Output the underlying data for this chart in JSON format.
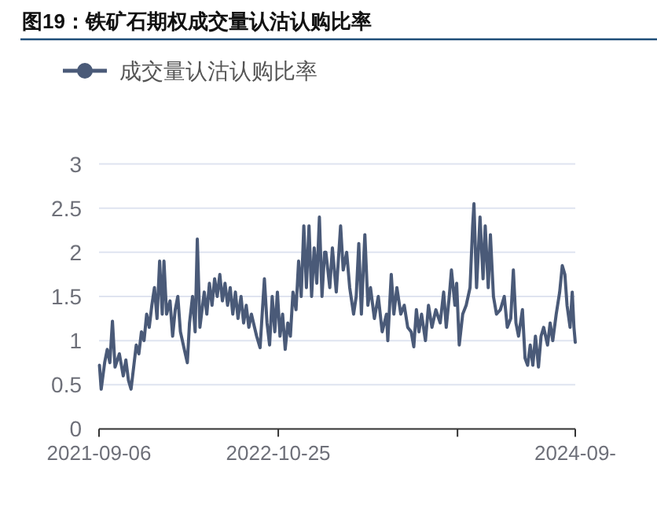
{
  "chart_data": {
    "type": "line",
    "title": "图19：铁矿石期权成交量认沽认购比率",
    "x": [
      "2021-09-07",
      "2021-09-11",
      "2021-09-19",
      "2021-09-25",
      "2021-10-01",
      "2021-10-07",
      "2021-10-13",
      "2021-10-23",
      "2021-11-01",
      "2021-11-07",
      "2021-11-13",
      "2021-11-19",
      "2021-11-25",
      "2021-12-01",
      "2021-12-07",
      "2021-12-13",
      "2021-12-19",
      "2021-12-25",
      "2021-12-31",
      "2022-01-06",
      "2022-01-12",
      "2022-01-18",
      "2022-01-24",
      "2022-01-30",
      "2022-02-03",
      "2022-02-09",
      "2022-02-17",
      "2022-02-23",
      "2022-03-01",
      "2022-03-07",
      "2022-03-13",
      "2022-03-22",
      "2022-03-29",
      "2022-04-03",
      "2022-04-10",
      "2022-04-16",
      "2022-04-21",
      "2022-04-27",
      "2022-05-07",
      "2022-05-13",
      "2022-05-19",
      "2022-05-25",
      "2022-05-31",
      "2022-06-06",
      "2022-06-12",
      "2022-06-18",
      "2022-06-24",
      "2022-06-30",
      "2022-07-06",
      "2022-07-12",
      "2022-07-18",
      "2022-07-24",
      "2022-07-31",
      "2022-08-06",
      "2022-08-12",
      "2022-08-18",
      "2022-08-24",
      "2022-09-05",
      "2022-09-13",
      "2022-09-23",
      "2022-09-29",
      "2022-10-05",
      "2022-10-11",
      "2022-10-17",
      "2022-10-23",
      "2022-10-29",
      "2022-11-04",
      "2022-11-10",
      "2022-11-16",
      "2022-11-22",
      "2022-11-28",
      "2022-12-05",
      "2022-12-11",
      "2022-12-17",
      "2022-12-23",
      "2022-12-29",
      "2023-01-04",
      "2023-01-10",
      "2023-01-16",
      "2023-01-22",
      "2023-01-28",
      "2023-02-03",
      "2023-02-09",
      "2023-02-12",
      "2023-02-21",
      "2023-02-27",
      "2023-03-08",
      "2023-03-18",
      "2023-03-24",
      "2023-04-01",
      "2023-04-08",
      "2023-04-17",
      "2023-04-23",
      "2023-04-29",
      "2023-05-05",
      "2023-05-13",
      "2023-05-20",
      "2023-05-26",
      "2023-06-04",
      "2023-06-13",
      "2023-06-22",
      "2023-07-02",
      "2023-07-05",
      "2023-07-13",
      "2023-07-19",
      "2023-07-26",
      "2023-08-04",
      "2023-08-12",
      "2023-08-20",
      "2023-08-28",
      "2023-09-03",
      "2023-09-09",
      "2023-09-15",
      "2023-09-21",
      "2023-09-30",
      "2023-10-07",
      "2023-10-15",
      "2023-10-24",
      "2023-11-03",
      "2023-11-11",
      "2023-11-17",
      "2023-11-24",
      "2023-11-29",
      "2023-12-07",
      "2023-12-11",
      "2023-12-17",
      "2023-12-25",
      "2024-01-02",
      "2024-01-11",
      "2024-01-17",
      "2024-01-20",
      "2024-01-26",
      "2024-02-03",
      "2024-02-10",
      "2024-02-15",
      "2024-02-22",
      "2024-02-27",
      "2024-03-05",
      "2024-03-12",
      "2024-03-21",
      "2024-03-30",
      "2024-04-06",
      "2024-04-14",
      "2024-04-20",
      "2024-04-26",
      "2024-05-02",
      "2024-05-11",
      "2024-05-17",
      "2024-05-23",
      "2024-05-29",
      "2024-06-04",
      "2024-06-10",
      "2024-06-17",
      "2024-06-23",
      "2024-06-29",
      "2024-07-08",
      "2024-07-14",
      "2024-07-20",
      "2024-07-28",
      "2024-08-05",
      "2024-08-11",
      "2024-08-17",
      "2024-08-22",
      "2024-08-29",
      "2024-09-03",
      "2024-09-07",
      "2024-09-10"
    ],
    "series": [
      {
        "name": "成交量认沽认购比率",
        "color": "#4a5a78",
        "values": [
          0.72,
          0.45,
          0.75,
          0.9,
          0.75,
          1.22,
          0.7,
          0.85,
          0.6,
          0.78,
          0.55,
          0.45,
          0.7,
          0.95,
          0.85,
          1.1,
          1.0,
          1.3,
          1.15,
          1.4,
          1.6,
          1.25,
          1.9,
          1.3,
          1.9,
          1.3,
          1.45,
          1.05,
          1.35,
          1.5,
          1.1,
          0.9,
          0.75,
          1.2,
          1.5,
          1.1,
          2.15,
          1.15,
          1.55,
          1.3,
          1.65,
          1.4,
          1.7,
          1.5,
          1.75,
          1.45,
          1.65,
          1.4,
          1.6,
          1.3,
          1.55,
          1.25,
          1.5,
          1.2,
          1.4,
          1.15,
          1.3,
          1.05,
          0.92,
          1.7,
          1.2,
          0.95,
          1.5,
          1.1,
          1.55,
          1.05,
          1.3,
          0.9,
          1.2,
          1.05,
          1.55,
          1.35,
          1.9,
          1.5,
          2.3,
          1.6,
          2.3,
          1.5,
          2.05,
          1.65,
          2.4,
          1.5,
          2.0,
          2.0,
          1.6,
          2.05,
          1.55,
          2.3,
          1.8,
          2.0,
          1.6,
          1.3,
          1.5,
          2.1,
          1.3,
          2.2,
          1.4,
          1.6,
          1.25,
          1.5,
          1.1,
          1.3,
          1.0,
          1.75,
          1.3,
          1.6,
          1.3,
          1.4,
          1.15,
          1.1,
          0.93,
          1.35,
          1.1,
          1.3,
          1.0,
          1.4,
          1.15,
          1.35,
          1.2,
          1.55,
          1.15,
          1.5,
          1.8,
          1.4,
          1.65,
          0.95,
          1.3,
          1.4,
          1.6,
          2.3,
          2.55,
          1.6,
          2.4,
          1.7,
          2.3,
          1.6,
          2.2,
          1.5,
          1.3,
          1.35,
          1.5,
          1.15,
          1.25,
          1.8,
          1.2,
          1.05,
          1.35,
          0.8,
          0.72,
          0.95,
          0.72,
          1.05,
          0.7,
          1.05,
          1.15,
          0.95,
          1.2,
          1.0,
          1.3,
          1.55,
          1.85,
          1.75,
          1.4,
          1.15,
          1.55,
          1.15,
          0.98
        ]
      }
    ],
    "xlim": [
      "2021-09-06",
      "2024-09-10"
    ],
    "xticks": [
      {
        "value": "2021-09-06",
        "label": "2021-09-06"
      },
      {
        "value": "2022-10-25",
        "label": "2022-10-25"
      },
      {
        "value": "2023-12-13",
        "label": null
      },
      {
        "value": "2024-09-10",
        "label": "2024-09-"
      }
    ],
    "ylim": [
      0,
      3
    ],
    "yticks": [
      0,
      0.5,
      1,
      1.5,
      2,
      2.5,
      3
    ],
    "grid": "y",
    "legend": "top left"
  }
}
